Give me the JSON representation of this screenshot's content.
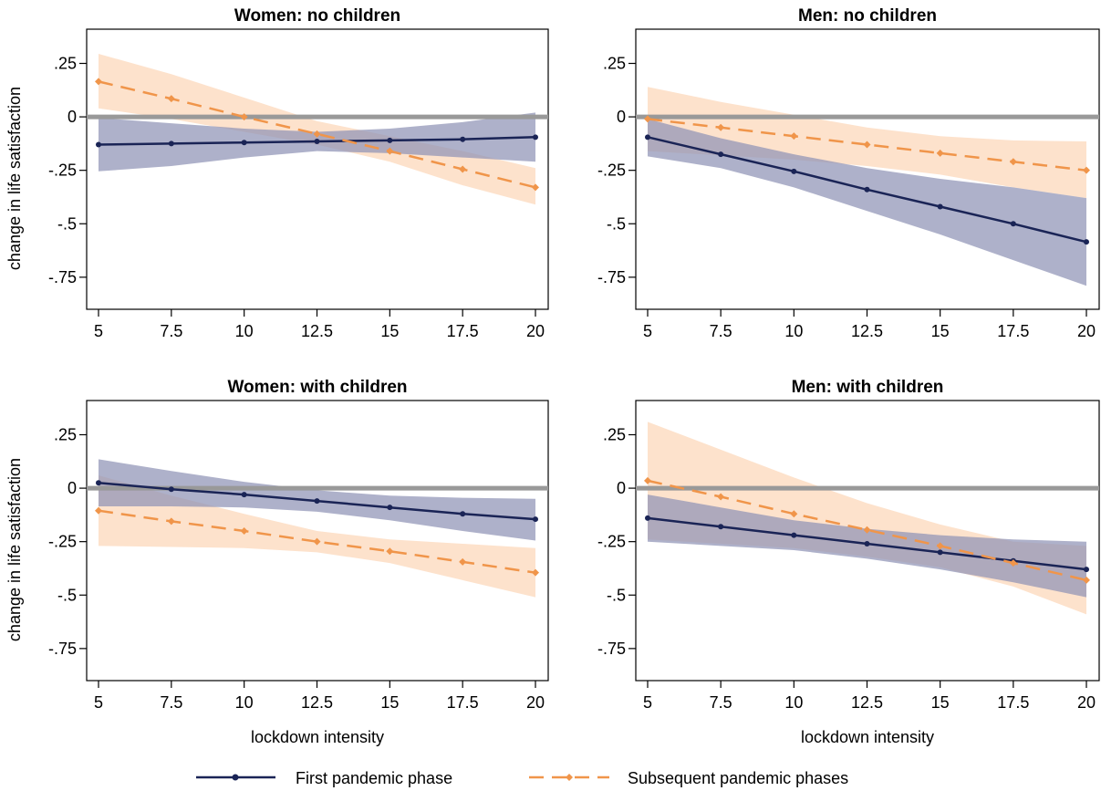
{
  "legend": {
    "items": [
      {
        "label": "First pandemic phase",
        "key": "first"
      },
      {
        "label": "Subsequent pandemic phases",
        "key": "subsequent"
      }
    ]
  },
  "chart_data": [
    {
      "type": "line",
      "title": "Women: no children",
      "xlabel": "",
      "ylabel": "change in life satisfaction",
      "x": [
        5,
        7.5,
        10,
        12.5,
        15,
        17.5,
        20
      ],
      "xticks": [
        "5",
        "7.5",
        "10",
        "12.5",
        "15",
        "17.5",
        "20"
      ],
      "yticks": [
        ".25",
        "0",
        "-.25",
        "-.5",
        "-.75"
      ],
      "ylim": [
        -0.9,
        0.41
      ],
      "reference_line_y": 0,
      "series": [
        {
          "name": "First pandemic phase",
          "values": [
            -0.13,
            -0.125,
            -0.12,
            -0.115,
            -0.11,
            -0.105,
            -0.095
          ],
          "ci_lower": [
            -0.255,
            -0.23,
            -0.19,
            -0.16,
            -0.17,
            -0.19,
            -0.21
          ],
          "ci_upper": [
            -0.005,
            -0.03,
            -0.055,
            -0.07,
            -0.055,
            -0.025,
            0.02
          ]
        },
        {
          "name": "Subsequent pandemic phases",
          "values": [
            0.165,
            0.085,
            0.0,
            -0.08,
            -0.16,
            -0.245,
            -0.33
          ],
          "ci_lower": [
            0.04,
            -0.01,
            -0.07,
            -0.13,
            -0.21,
            -0.32,
            -0.41
          ],
          "ci_upper": [
            0.295,
            0.2,
            0.09,
            -0.02,
            -0.09,
            -0.16,
            -0.24
          ]
        }
      ]
    },
    {
      "type": "line",
      "title": "Men: no children",
      "xlabel": "",
      "ylabel": "",
      "x": [
        5,
        7.5,
        10,
        12.5,
        15,
        17.5,
        20
      ],
      "xticks": [
        "5",
        "7.5",
        "10",
        "12.5",
        "15",
        "17.5",
        "20"
      ],
      "yticks": [
        ".25",
        "0",
        "-.25",
        "-.5",
        "-.75"
      ],
      "ylim": [
        -0.9,
        0.41
      ],
      "reference_line_y": 0,
      "series": [
        {
          "name": "First pandemic phase",
          "values": [
            -0.095,
            -0.175,
            -0.255,
            -0.34,
            -0.42,
            -0.5,
            -0.585
          ],
          "ci_lower": [
            -0.185,
            -0.24,
            -0.33,
            -0.44,
            -0.55,
            -0.67,
            -0.79
          ],
          "ci_upper": [
            -0.01,
            -0.1,
            -0.175,
            -0.24,
            -0.29,
            -0.33,
            -0.38
          ]
        },
        {
          "name": "Subsequent pandemic phases",
          "values": [
            -0.01,
            -0.05,
            -0.09,
            -0.13,
            -0.17,
            -0.21,
            -0.25
          ],
          "ci_lower": [
            -0.16,
            -0.18,
            -0.2,
            -0.23,
            -0.27,
            -0.33,
            -0.38
          ],
          "ci_upper": [
            0.14,
            0.07,
            0.01,
            -0.05,
            -0.09,
            -0.11,
            -0.115
          ]
        }
      ]
    },
    {
      "type": "line",
      "title": "Women: with children",
      "xlabel": "lockdown intensity",
      "ylabel": "change in life satisfaction",
      "x": [
        5,
        7.5,
        10,
        12.5,
        15,
        17.5,
        20
      ],
      "xticks": [
        "5",
        "7.5",
        "10",
        "12.5",
        "15",
        "17.5",
        "20"
      ],
      "yticks": [
        ".25",
        "0",
        "-.25",
        "-.5",
        "-.75"
      ],
      "ylim": [
        -0.9,
        0.41
      ],
      "reference_line_y": 0,
      "series": [
        {
          "name": "First pandemic phase",
          "values": [
            0.025,
            -0.005,
            -0.03,
            -0.06,
            -0.09,
            -0.12,
            -0.145
          ],
          "ci_lower": [
            -0.085,
            -0.085,
            -0.09,
            -0.11,
            -0.15,
            -0.2,
            -0.245
          ],
          "ci_upper": [
            0.135,
            0.08,
            0.03,
            -0.01,
            -0.035,
            -0.045,
            -0.05
          ]
        },
        {
          "name": "Subsequent pandemic phases",
          "values": [
            -0.105,
            -0.155,
            -0.2,
            -0.25,
            -0.295,
            -0.345,
            -0.395
          ],
          "ci_lower": [
            -0.27,
            -0.275,
            -0.28,
            -0.3,
            -0.35,
            -0.43,
            -0.51
          ],
          "ci_upper": [
            0.06,
            -0.035,
            -0.12,
            -0.2,
            -0.24,
            -0.26,
            -0.28
          ]
        }
      ]
    },
    {
      "type": "line",
      "title": "Men: with children",
      "xlabel": "lockdown intensity",
      "ylabel": "",
      "x": [
        5,
        7.5,
        10,
        12.5,
        15,
        17.5,
        20
      ],
      "xticks": [
        "5",
        "7.5",
        "10",
        "12.5",
        "15",
        "17.5",
        "20"
      ],
      "yticks": [
        ".25",
        "0",
        "-.25",
        "-.5",
        "-.75"
      ],
      "ylim": [
        -0.9,
        0.41
      ],
      "reference_line_y": 0,
      "series": [
        {
          "name": "First pandemic phase",
          "values": [
            -0.14,
            -0.18,
            -0.22,
            -0.26,
            -0.3,
            -0.34,
            -0.38
          ],
          "ci_lower": [
            -0.25,
            -0.27,
            -0.29,
            -0.33,
            -0.38,
            -0.44,
            -0.51
          ],
          "ci_upper": [
            -0.03,
            -0.09,
            -0.15,
            -0.19,
            -0.22,
            -0.24,
            -0.25
          ]
        },
        {
          "name": "Subsequent pandemic phases",
          "values": [
            0.035,
            -0.04,
            -0.12,
            -0.195,
            -0.27,
            -0.35,
            -0.43
          ],
          "ci_lower": [
            -0.24,
            -0.26,
            -0.28,
            -0.32,
            -0.37,
            -0.46,
            -0.59
          ],
          "ci_upper": [
            0.31,
            0.18,
            0.05,
            -0.07,
            -0.17,
            -0.25,
            -0.27
          ]
        }
      ]
    }
  ],
  "colors": {
    "first_line": "#1a2456",
    "first_band": "#8f93b6",
    "subsequent_line": "#f0954a",
    "subsequent_band": "#fbd0ac",
    "reference_line": "#999999"
  }
}
